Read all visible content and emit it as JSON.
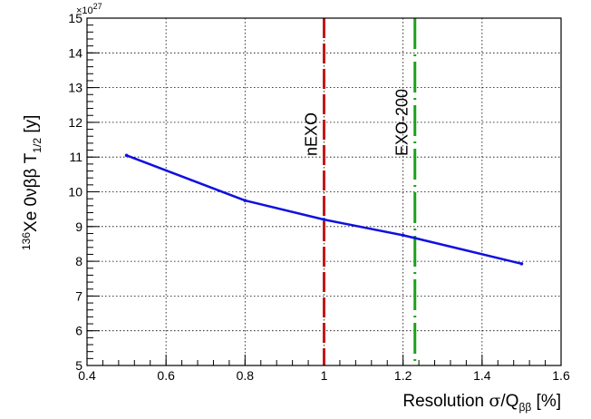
{
  "chart_data": {
    "type": "line",
    "title": "",
    "xlabel": {
      "main": "Resolution ",
      "sigma": "σ",
      "slash": "/Q",
      "sub": "ββ",
      "unit": " [%]"
    },
    "ylabel": {
      "sup": "136",
      "main": "Xe  0νββ  T",
      "sub": "1/2",
      "unit": "  [y]"
    },
    "y_multiplier": "×10",
    "y_multiplier_exp": "27",
    "xlim": [
      0.4,
      1.6
    ],
    "ylim": [
      5,
      15
    ],
    "x_ticks": [
      "0.4",
      "0.6",
      "0.8",
      "1",
      "1.2",
      "1.4",
      "1.6"
    ],
    "y_ticks": [
      "5",
      "6",
      "7",
      "8",
      "9",
      "10",
      "11",
      "12",
      "13",
      "14",
      "15"
    ],
    "grid": true,
    "series": [
      {
        "color": "#1010e0",
        "x": [
          0.5,
          0.8,
          1.0,
          1.2,
          1.5
        ],
        "y": [
          11.05,
          9.75,
          9.2,
          8.75,
          7.93
        ]
      }
    ],
    "vlines": [
      {
        "x": 1.0,
        "label": "nEXO",
        "color": "#c41818",
        "style": "dashed"
      },
      {
        "x": 1.23,
        "label": "EXO-200",
        "color": "#1aa31a",
        "style": "dash-dot"
      }
    ]
  }
}
